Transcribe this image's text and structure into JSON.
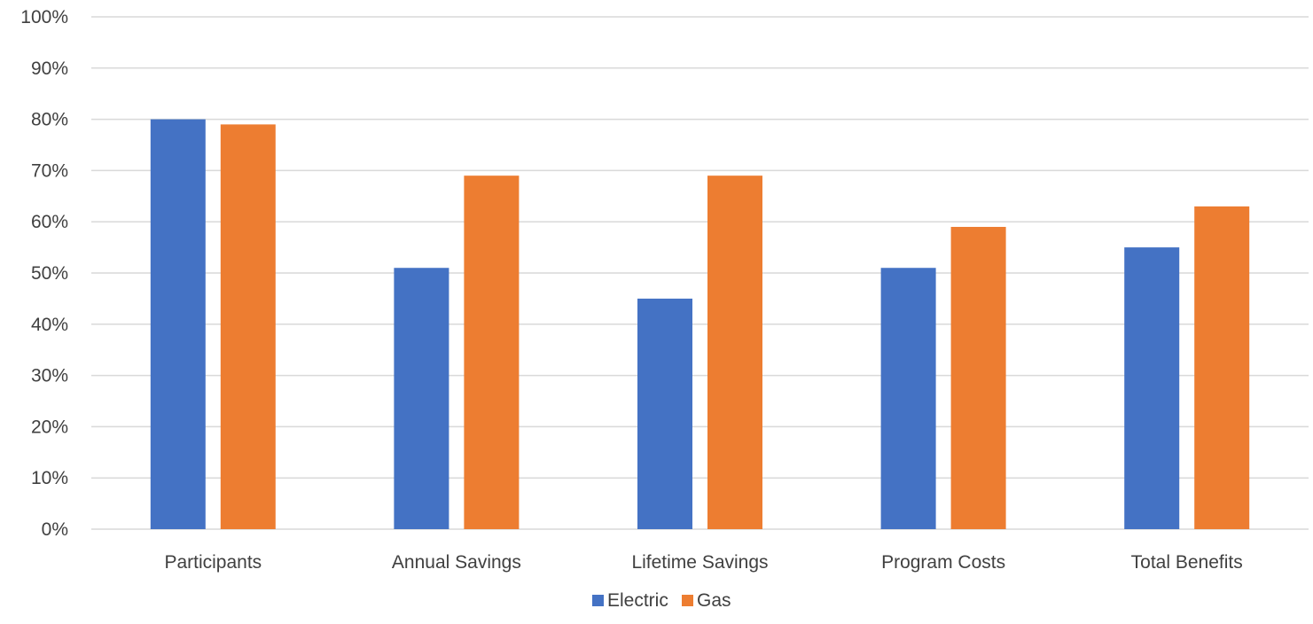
{
  "chart_data": {
    "type": "bar",
    "categories": [
      "Participants",
      "Annual Savings",
      "Lifetime Savings",
      "Program Costs",
      "Total Benefits"
    ],
    "series": [
      {
        "name": "Electric",
        "color": "#4472c4",
        "values": [
          80,
          51,
          45,
          51,
          55
        ]
      },
      {
        "name": "Gas",
        "color": "#ed7d31",
        "values": [
          79,
          69,
          69,
          59,
          63
        ]
      }
    ],
    "y_ticks": [
      "0%",
      "10%",
      "20%",
      "30%",
      "40%",
      "50%",
      "60%",
      "70%",
      "80%",
      "90%",
      "100%"
    ],
    "ylim": [
      0,
      100
    ],
    "grid": true,
    "legend_position": "bottom"
  }
}
